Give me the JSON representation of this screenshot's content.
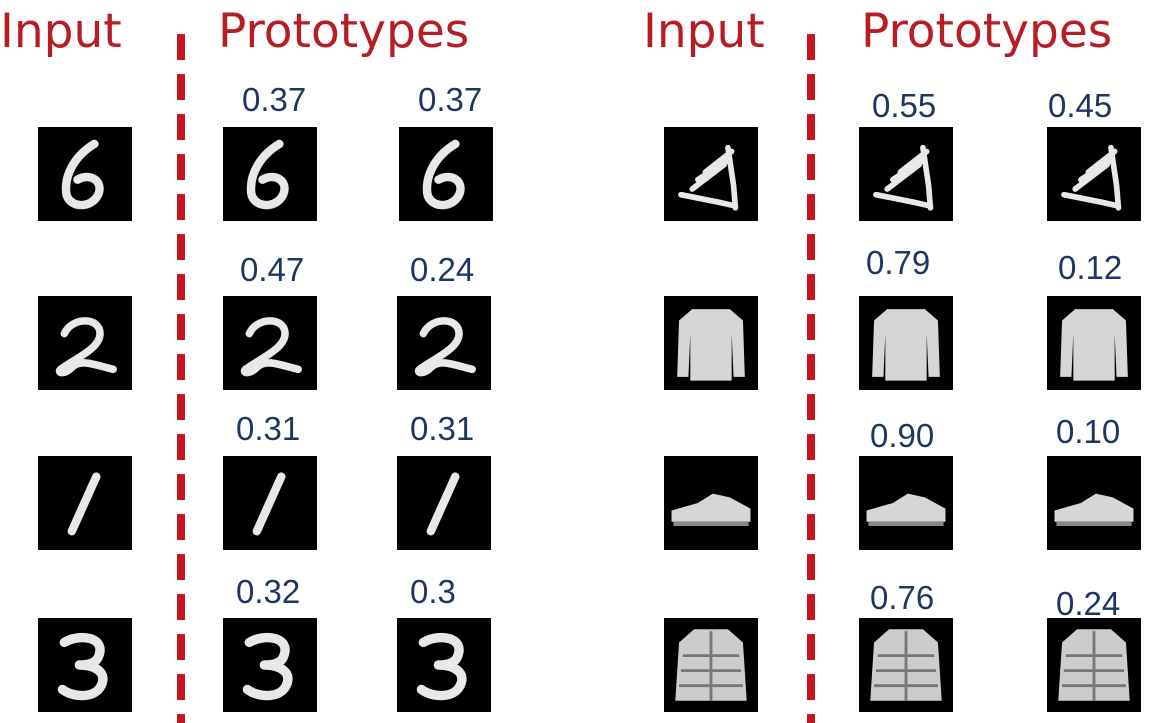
{
  "colors": {
    "header": "#b81c25",
    "divider": "#c8141e",
    "score": "#1f3563",
    "tile": "#000000",
    "ink": "#e8e8e8"
  },
  "panels": [
    {
      "name": "digits",
      "input_header": "Input",
      "prototypes_header": "Prototypes",
      "rows": [
        {
          "input": "digit-6-icon",
          "prototypes": [
            {
              "icon": "digit-6-icon",
              "score": "0.37"
            },
            {
              "icon": "digit-6-icon",
              "score": "0.37"
            }
          ]
        },
        {
          "input": "digit-2-icon",
          "prototypes": [
            {
              "icon": "digit-2-icon",
              "score": "0.47"
            },
            {
              "icon": "digit-2-icon",
              "score": "0.24"
            }
          ]
        },
        {
          "input": "digit-1-icon",
          "prototypes": [
            {
              "icon": "digit-1-icon",
              "score": "0.31"
            },
            {
              "icon": "digit-1-icon",
              "score": "0.31"
            }
          ]
        },
        {
          "input": "digit-3-icon",
          "prototypes": [
            {
              "icon": "digit-3-icon",
              "score": "0.32"
            },
            {
              "icon": "digit-3-icon",
              "score": "0.3"
            }
          ]
        }
      ]
    },
    {
      "name": "fashion",
      "input_header": "Input",
      "prototypes_header": "Prototypes",
      "rows": [
        {
          "input": "sandal-icon",
          "prototypes": [
            {
              "icon": "sandal-icon",
              "score": "0.55"
            },
            {
              "icon": "sandal-icon",
              "score": "0.45"
            }
          ]
        },
        {
          "input": "pullover-icon",
          "prototypes": [
            {
              "icon": "pullover-icon",
              "score": "0.79"
            },
            {
              "icon": "pullover-icon",
              "score": "0.12"
            }
          ]
        },
        {
          "input": "sneaker-icon",
          "prototypes": [
            {
              "icon": "sneaker-icon",
              "score": "0.90"
            },
            {
              "icon": "sneaker-icon",
              "score": "0.10"
            }
          ]
        },
        {
          "input": "coat-icon",
          "prototypes": [
            {
              "icon": "coat-icon",
              "score": "0.76"
            },
            {
              "icon": "coat-icon",
              "score": "0.24"
            }
          ]
        }
      ]
    }
  ]
}
